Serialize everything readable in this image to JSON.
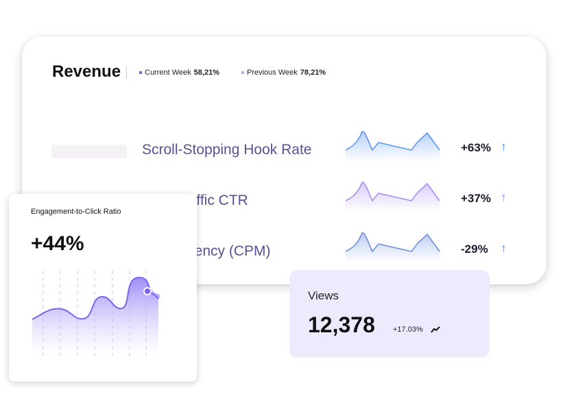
{
  "revenue": {
    "title": "Revenue",
    "legend": [
      {
        "label": "Current Week",
        "value": "58,21%",
        "color": "#7b6fc9"
      },
      {
        "label": "Previous Week",
        "value": "78,21%",
        "color": "#b9b2ea"
      }
    ],
    "rows": [
      {
        "label": "Scroll-Stopping Hook Rate",
        "change": "+63%",
        "icon": "arrow-up-icon",
        "color": "#5b95f5"
      },
      {
        "label": "Cold Traffic CTR",
        "change": "+37%",
        "icon": "arrow-up-icon",
        "color": "#a78bf5"
      },
      {
        "label": "Ad Efficiency (CPM)",
        "change": "-29%",
        "icon": "arrow-up-icon",
        "color": "#6b8fe0"
      }
    ]
  },
  "engagement": {
    "title": "Engagement-to-Click Ratio",
    "value": "+44%",
    "color": "#7b61f0"
  },
  "views": {
    "title": "Views",
    "value": "12,378",
    "change": "+17.03%",
    "icon": "trend-up-icon"
  },
  "chart_data": [
    {
      "type": "line",
      "name_hint": "",
      "values": [
        0,
        45,
        95,
        5,
        35,
        5,
        35,
        85,
        0
      ]
    },
    {
      "type": "area",
      "values": [
        30,
        42,
        30,
        52,
        72,
        62,
        99,
        82,
        72
      ]
    }
  ]
}
